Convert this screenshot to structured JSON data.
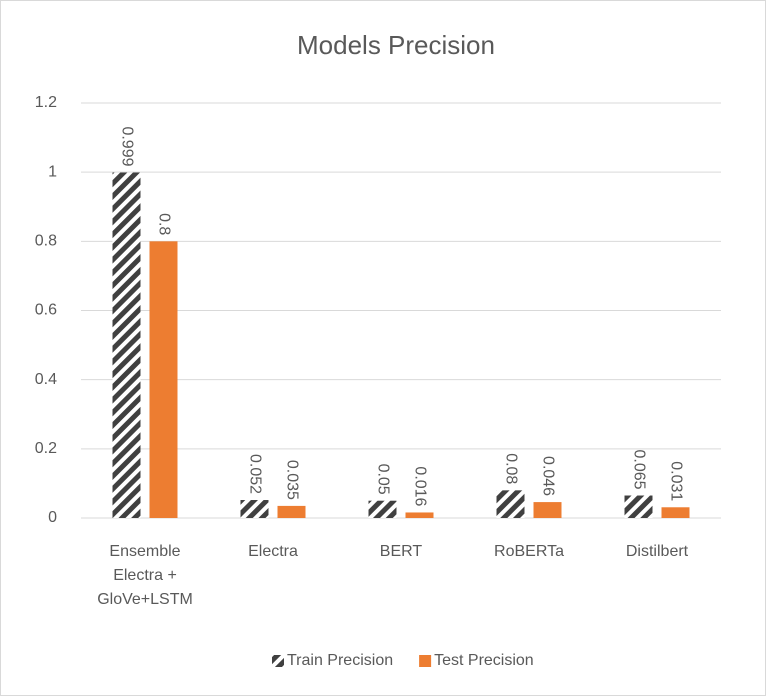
{
  "chart_data": {
    "type": "bar",
    "title": "Models Precision",
    "categories": [
      "Ensemble Electra + GloVe+LSTM",
      "Electra",
      "BERT",
      "RoBERTa",
      "Distilbert"
    ],
    "series": [
      {
        "name": "Train Precision",
        "color": "#404040",
        "pattern": "hatch",
        "values": [
          0.999,
          0.052,
          0.05,
          0.08,
          0.065
        ]
      },
      {
        "name": "Test Precision",
        "color": "#ED7D31",
        "values": [
          0.8,
          0.035,
          0.016,
          0.046,
          0.031
        ]
      }
    ],
    "ylim": [
      0,
      1.2
    ],
    "yticks": [
      0,
      0.2,
      0.4,
      0.6,
      0.8,
      1,
      1.2
    ],
    "grid": true,
    "legend": "bottom"
  }
}
